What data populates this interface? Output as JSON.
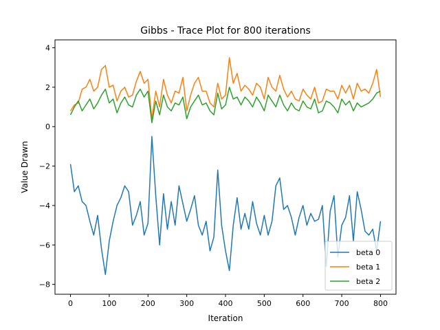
{
  "chart_data": {
    "type": "line",
    "title": "Gibbs - Trace Plot for 800 iterations",
    "xlabel": "Iteration",
    "ylabel": "Value Drawn",
    "xlim": [
      -40,
      840
    ],
    "ylim": [
      -8.5,
      4.4
    ],
    "xticks": [
      0,
      100,
      200,
      300,
      400,
      500,
      600,
      700,
      800
    ],
    "yticks": [
      -8,
      -6,
      -4,
      -2,
      0,
      2,
      4
    ],
    "grid": false,
    "legend_position": "lower-right",
    "series": [
      {
        "name": "beta 0",
        "color": "#1f77b4",
        "x": [
          0,
          10,
          20,
          30,
          40,
          50,
          60,
          70,
          80,
          90,
          100,
          110,
          120,
          130,
          140,
          150,
          160,
          170,
          180,
          190,
          200,
          210,
          220,
          230,
          240,
          250,
          260,
          270,
          280,
          290,
          300,
          310,
          320,
          330,
          340,
          350,
          360,
          370,
          380,
          390,
          400,
          410,
          420,
          430,
          440,
          450,
          460,
          470,
          480,
          490,
          500,
          510,
          520,
          530,
          540,
          550,
          560,
          570,
          580,
          590,
          600,
          610,
          620,
          630,
          640,
          650,
          660,
          670,
          680,
          690,
          700,
          710,
          720,
          730,
          740,
          750,
          760,
          770,
          780,
          790,
          800
        ],
        "values": [
          -1.9,
          -3.3,
          -3.0,
          -3.8,
          -4.0,
          -4.8,
          -5.5,
          -4.5,
          -6.2,
          -7.5,
          -5.8,
          -4.8,
          -4.0,
          -3.6,
          -3.0,
          -3.3,
          -5.0,
          -4.5,
          -3.8,
          -5.5,
          -4.9,
          -0.5,
          -3.5,
          -6.0,
          -3.4,
          -5.2,
          -3.8,
          -5.0,
          -3.0,
          -3.9,
          -4.8,
          -4.2,
          -3.5,
          -5.0,
          -5.5,
          -4.8,
          -6.3,
          -5.6,
          -2.2,
          -5.0,
          -6.3,
          -7.3,
          -5.0,
          -3.6,
          -5.2,
          -4.4,
          -5.2,
          -3.8,
          -4.9,
          -5.5,
          -4.5,
          -5.5,
          -4.8,
          -3.0,
          -2.6,
          -4.2,
          -4.0,
          -4.6,
          -5.5,
          -4.6,
          -4.0,
          -5.0,
          -4.4,
          -4.8,
          -4.7,
          -4.0,
          -7.1,
          -4.3,
          -3.5,
          -6.6,
          -5.0,
          -4.6,
          -3.5,
          -5.8,
          -3.3,
          -4.2,
          -5.3,
          -5.5,
          -5.2,
          -6.3,
          -4.8
        ]
      },
      {
        "name": "beta 1",
        "color": "#ff7f0e",
        "x": [
          0,
          10,
          20,
          30,
          40,
          50,
          60,
          70,
          80,
          90,
          100,
          110,
          120,
          130,
          140,
          150,
          160,
          170,
          180,
          190,
          200,
          210,
          220,
          230,
          240,
          250,
          260,
          270,
          280,
          290,
          300,
          310,
          320,
          330,
          340,
          350,
          360,
          370,
          380,
          390,
          400,
          410,
          420,
          430,
          440,
          450,
          460,
          470,
          480,
          490,
          500,
          510,
          520,
          530,
          540,
          550,
          560,
          570,
          580,
          590,
          600,
          610,
          620,
          630,
          640,
          650,
          660,
          670,
          680,
          690,
          700,
          710,
          720,
          730,
          740,
          750,
          760,
          770,
          780,
          790,
          800
        ],
        "values": [
          0.8,
          1.1,
          1.2,
          1.9,
          2.0,
          2.4,
          1.8,
          2.0,
          2.9,
          3.1,
          2.0,
          2.1,
          1.3,
          1.8,
          2.0,
          1.5,
          1.6,
          2.3,
          2.8,
          2.2,
          2.4,
          0.4,
          1.8,
          1.0,
          2.4,
          1.6,
          1.2,
          1.8,
          1.7,
          2.5,
          0.8,
          1.6,
          2.2,
          2.5,
          1.8,
          1.8,
          1.2,
          1.0,
          2.2,
          1.4,
          1.6,
          3.5,
          2.2,
          2.7,
          1.8,
          2.1,
          1.9,
          1.6,
          2.2,
          2.0,
          1.4,
          2.5,
          2.0,
          1.8,
          2.6,
          1.9,
          1.5,
          1.8,
          1.4,
          1.3,
          1.9,
          1.6,
          1.4,
          2.0,
          1.2,
          1.3,
          1.9,
          1.8,
          1.8,
          1.4,
          2.1,
          1.7,
          2.1,
          1.4,
          2.2,
          1.8,
          1.9,
          1.7,
          2.2,
          2.9,
          1.5
        ]
      },
      {
        "name": "beta 2",
        "color": "#2ca02c",
        "x": [
          0,
          10,
          20,
          30,
          40,
          50,
          60,
          70,
          80,
          90,
          100,
          110,
          120,
          130,
          140,
          150,
          160,
          170,
          180,
          190,
          200,
          210,
          220,
          230,
          240,
          250,
          260,
          270,
          280,
          290,
          300,
          310,
          320,
          330,
          340,
          350,
          360,
          370,
          380,
          390,
          400,
          410,
          420,
          430,
          440,
          450,
          460,
          470,
          480,
          490,
          500,
          510,
          520,
          530,
          540,
          550,
          560,
          570,
          580,
          590,
          600,
          610,
          620,
          630,
          640,
          650,
          660,
          670,
          680,
          690,
          700,
          710,
          720,
          730,
          740,
          750,
          760,
          770,
          780,
          790,
          800
        ],
        "values": [
          0.6,
          1.0,
          1.3,
          0.8,
          1.1,
          1.4,
          0.9,
          1.2,
          1.6,
          1.9,
          1.2,
          1.4,
          0.7,
          1.2,
          1.5,
          1.1,
          1.0,
          1.6,
          1.9,
          1.5,
          1.8,
          0.2,
          1.3,
          0.6,
          1.6,
          1.0,
          0.8,
          1.2,
          1.1,
          1.5,
          0.4,
          1.0,
          1.3,
          1.6,
          1.1,
          1.2,
          0.8,
          0.6,
          1.7,
          0.9,
          1.1,
          2.0,
          1.4,
          1.5,
          1.1,
          1.5,
          1.3,
          1.0,
          1.5,
          1.2,
          0.8,
          1.6,
          1.3,
          1.0,
          1.6,
          1.1,
          0.8,
          1.2,
          0.9,
          0.8,
          1.3,
          1.0,
          0.9,
          1.4,
          0.7,
          0.8,
          1.3,
          1.2,
          1.0,
          0.7,
          1.4,
          1.1,
          1.3,
          0.8,
          1.2,
          1.0,
          1.1,
          1.2,
          1.4,
          1.7,
          1.8
        ]
      }
    ]
  }
}
